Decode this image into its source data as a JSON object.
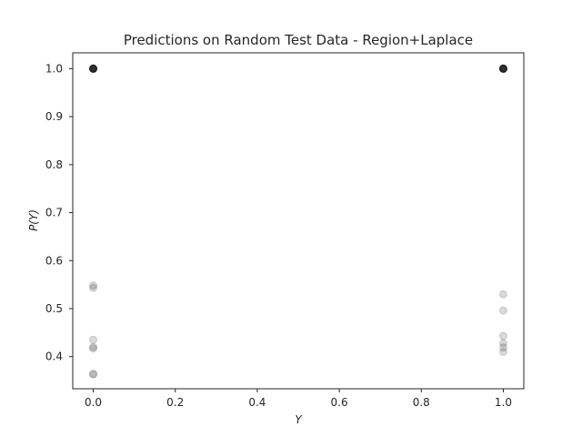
{
  "chart_data": {
    "type": "scatter",
    "title": "Predictions on Random Test Data - Region+Laplace",
    "xlabel": "Y",
    "ylabel": "P(Y)",
    "xlim": [
      -0.05,
      1.05
    ],
    "ylim": [
      0.333,
      1.033
    ],
    "xticks": [
      0.0,
      0.2,
      0.4,
      0.6,
      0.8,
      1.0
    ],
    "xtick_labels": [
      "0.0",
      "0.2",
      "0.4",
      "0.6",
      "0.8",
      "1.0"
    ],
    "yticks": [
      0.4,
      0.5,
      0.6,
      0.7,
      0.8,
      0.9,
      1.0
    ],
    "ytick_labels": [
      "0.4",
      "0.5",
      "0.6",
      "0.7",
      "0.8",
      "0.9",
      "1.0"
    ],
    "grid": false,
    "marker_color": "#000000",
    "marker_alpha": 0.15,
    "points": [
      {
        "x": 0.0,
        "y": 1.0
      },
      {
        "x": 0.0,
        "y": 1.0
      },
      {
        "x": 0.0,
        "y": 1.0
      },
      {
        "x": 0.0,
        "y": 1.0
      },
      {
        "x": 0.0,
        "y": 1.0
      },
      {
        "x": 0.0,
        "y": 1.0
      },
      {
        "x": 0.0,
        "y": 1.0
      },
      {
        "x": 0.0,
        "y": 1.0
      },
      {
        "x": 0.0,
        "y": 1.0
      },
      {
        "x": 0.0,
        "y": 1.0
      },
      {
        "x": 0.0,
        "y": 0.548
      },
      {
        "x": 0.0,
        "y": 0.543
      },
      {
        "x": 0.0,
        "y": 0.435
      },
      {
        "x": 0.0,
        "y": 0.42
      },
      {
        "x": 0.0,
        "y": 0.417
      },
      {
        "x": 0.0,
        "y": 0.364
      },
      {
        "x": 0.0,
        "y": 0.363
      },
      {
        "x": 1.0,
        "y": 1.0
      },
      {
        "x": 1.0,
        "y": 1.0
      },
      {
        "x": 1.0,
        "y": 1.0
      },
      {
        "x": 1.0,
        "y": 1.0
      },
      {
        "x": 1.0,
        "y": 1.0
      },
      {
        "x": 1.0,
        "y": 1.0
      },
      {
        "x": 1.0,
        "y": 1.0
      },
      {
        "x": 1.0,
        "y": 1.0
      },
      {
        "x": 1.0,
        "y": 1.0
      },
      {
        "x": 1.0,
        "y": 1.0
      },
      {
        "x": 1.0,
        "y": 0.53
      },
      {
        "x": 1.0,
        "y": 0.496
      },
      {
        "x": 1.0,
        "y": 0.443
      },
      {
        "x": 1.0,
        "y": 0.428
      },
      {
        "x": 1.0,
        "y": 0.419
      },
      {
        "x": 1.0,
        "y": 0.41
      }
    ]
  }
}
